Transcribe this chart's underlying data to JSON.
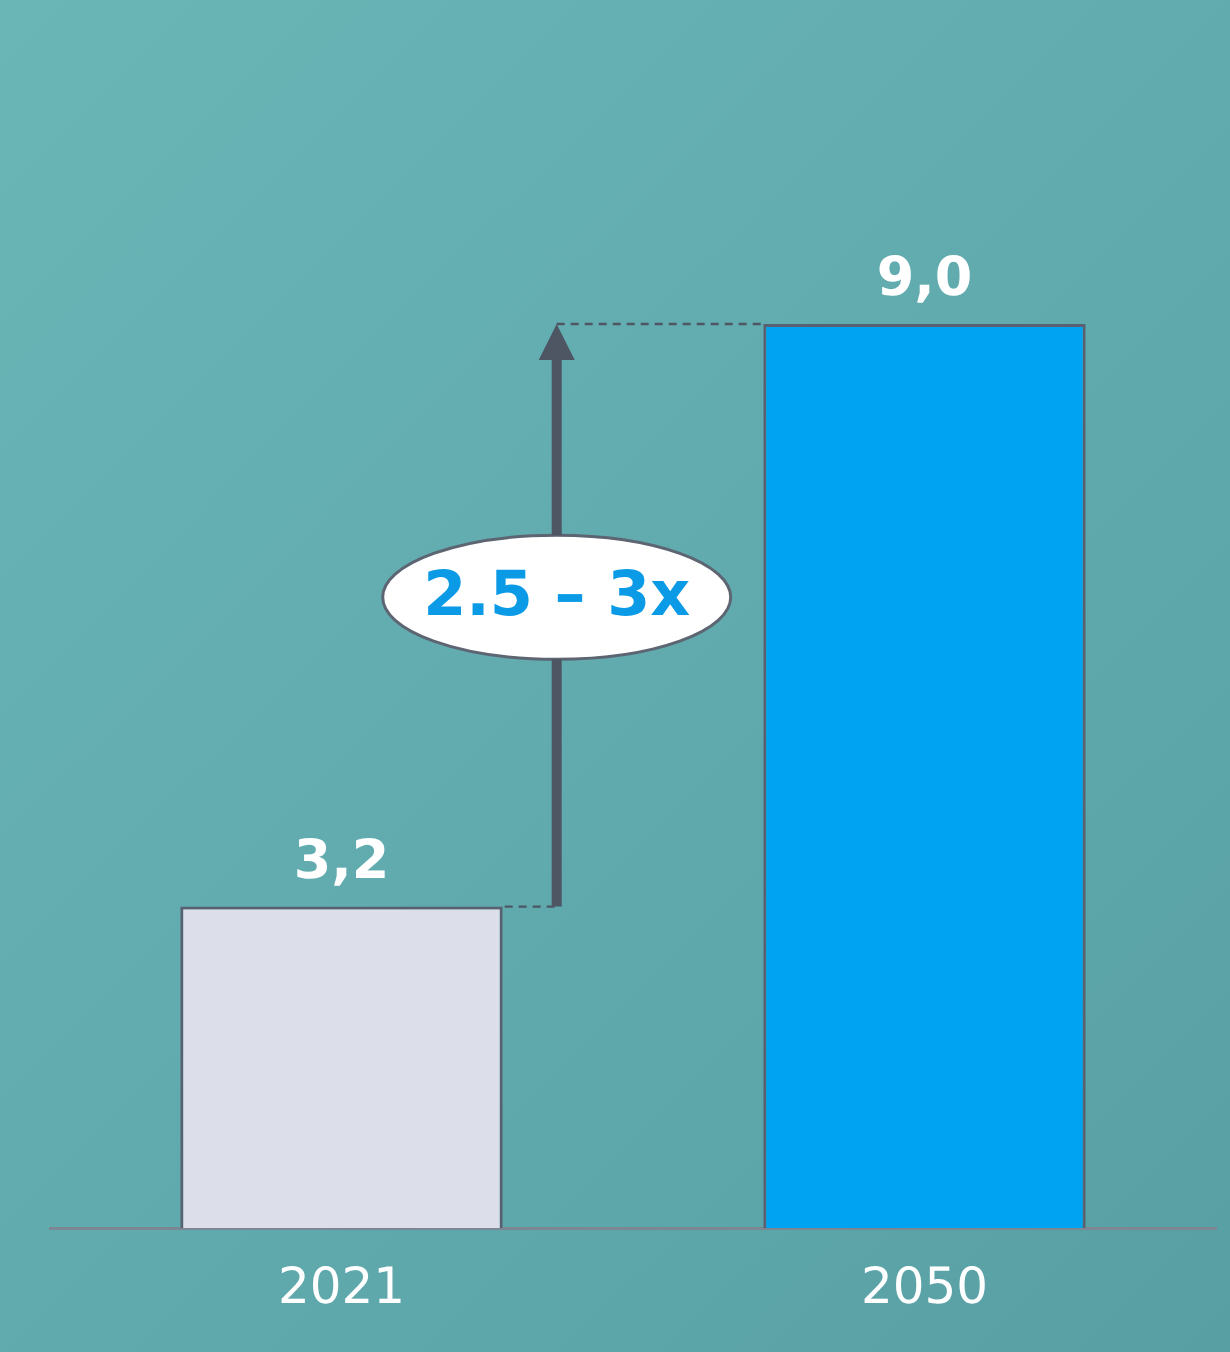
{
  "chart_data": {
    "type": "bar",
    "categories": [
      "2021",
      "2050"
    ],
    "values": [
      3.2,
      9.0
    ],
    "colors": [
      "#dcdfea",
      "#00a2f2"
    ],
    "value_labels": [
      "3,2",
      "9,0"
    ],
    "annotations": [
      "2.5 – 3x"
    ],
    "legend": false,
    "grid": false
  }
}
